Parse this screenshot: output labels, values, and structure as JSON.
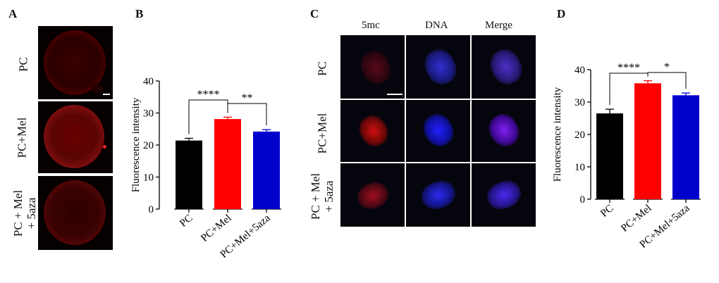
{
  "panels": {
    "a": "A",
    "b": "B",
    "c": "C",
    "d": "D"
  },
  "panel_a": {
    "rows": [
      "PC",
      "PC+Mel",
      "PC + Mel\n+ 5aza"
    ]
  },
  "panel_c": {
    "columns": [
      "5mc",
      "DNA",
      "Merge"
    ],
    "rows": [
      "PC",
      "PC+Mel",
      "PC + Mel\n+ 5aza"
    ]
  },
  "colors": {
    "pc": "#000000",
    "pc_mel": "#ff0000",
    "pc_mel_5aza": "#0000cc"
  },
  "chart_data": [
    {
      "type": "bar",
      "panel": "B",
      "categories": [
        "PC",
        "PC+Mel",
        "PC+Mel+5aza"
      ],
      "values": [
        21.4,
        28.1,
        24.2
      ],
      "errors": [
        0.7,
        0.6,
        0.6
      ],
      "ylabel": "Fluorescence intensity",
      "ylim": [
        0,
        40
      ],
      "yticks": [
        0,
        10,
        20,
        30,
        40
      ],
      "significance": [
        {
          "from": 0,
          "to": 1,
          "label": "****"
        },
        {
          "from": 1,
          "to": 2,
          "label": "**"
        }
      ]
    },
    {
      "type": "bar",
      "panel": "D",
      "categories": [
        "PC",
        "PC+Mel",
        "PC+Mel+5aza"
      ],
      "values": [
        26.5,
        35.8,
        32.1
      ],
      "errors": [
        1.3,
        0.8,
        0.7
      ],
      "ylabel": "Fluorescence intensity",
      "ylim": [
        0,
        40
      ],
      "yticks": [
        0,
        10,
        20,
        30,
        40
      ],
      "significance": [
        {
          "from": 0,
          "to": 1,
          "label": "****"
        },
        {
          "from": 1,
          "to": 2,
          "label": "*"
        }
      ]
    }
  ]
}
